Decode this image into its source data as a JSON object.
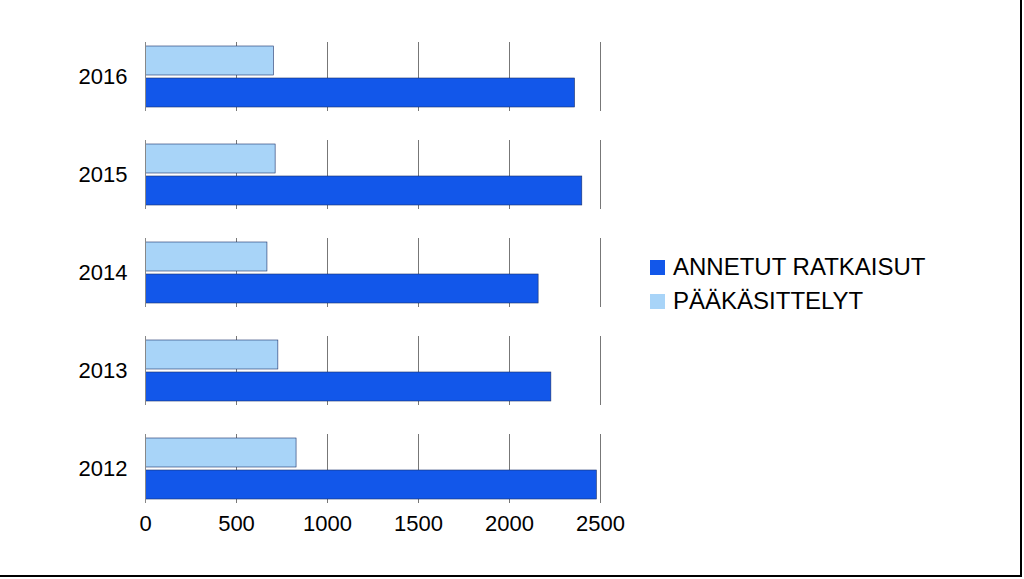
{
  "chart_data": {
    "type": "bar",
    "orientation": "horizontal",
    "grid": true,
    "legend": "right",
    "categories": [
      "2012",
      "2013",
      "2014",
      "2015",
      "2016"
    ],
    "series": [
      {
        "name": "ANNETUT RATKAISUT",
        "color": "#1257ea",
        "values": [
          2480,
          2230,
          2160,
          2400,
          2360
        ]
      },
      {
        "name": "PÄÄKÄSITTELYT",
        "color": "#a8d4f8",
        "values": [
          830,
          730,
          670,
          715,
          705
        ]
      }
    ],
    "xlim": [
      0,
      2500
    ],
    "xticks": [
      0,
      500,
      1000,
      1500,
      2000,
      2500
    ]
  }
}
